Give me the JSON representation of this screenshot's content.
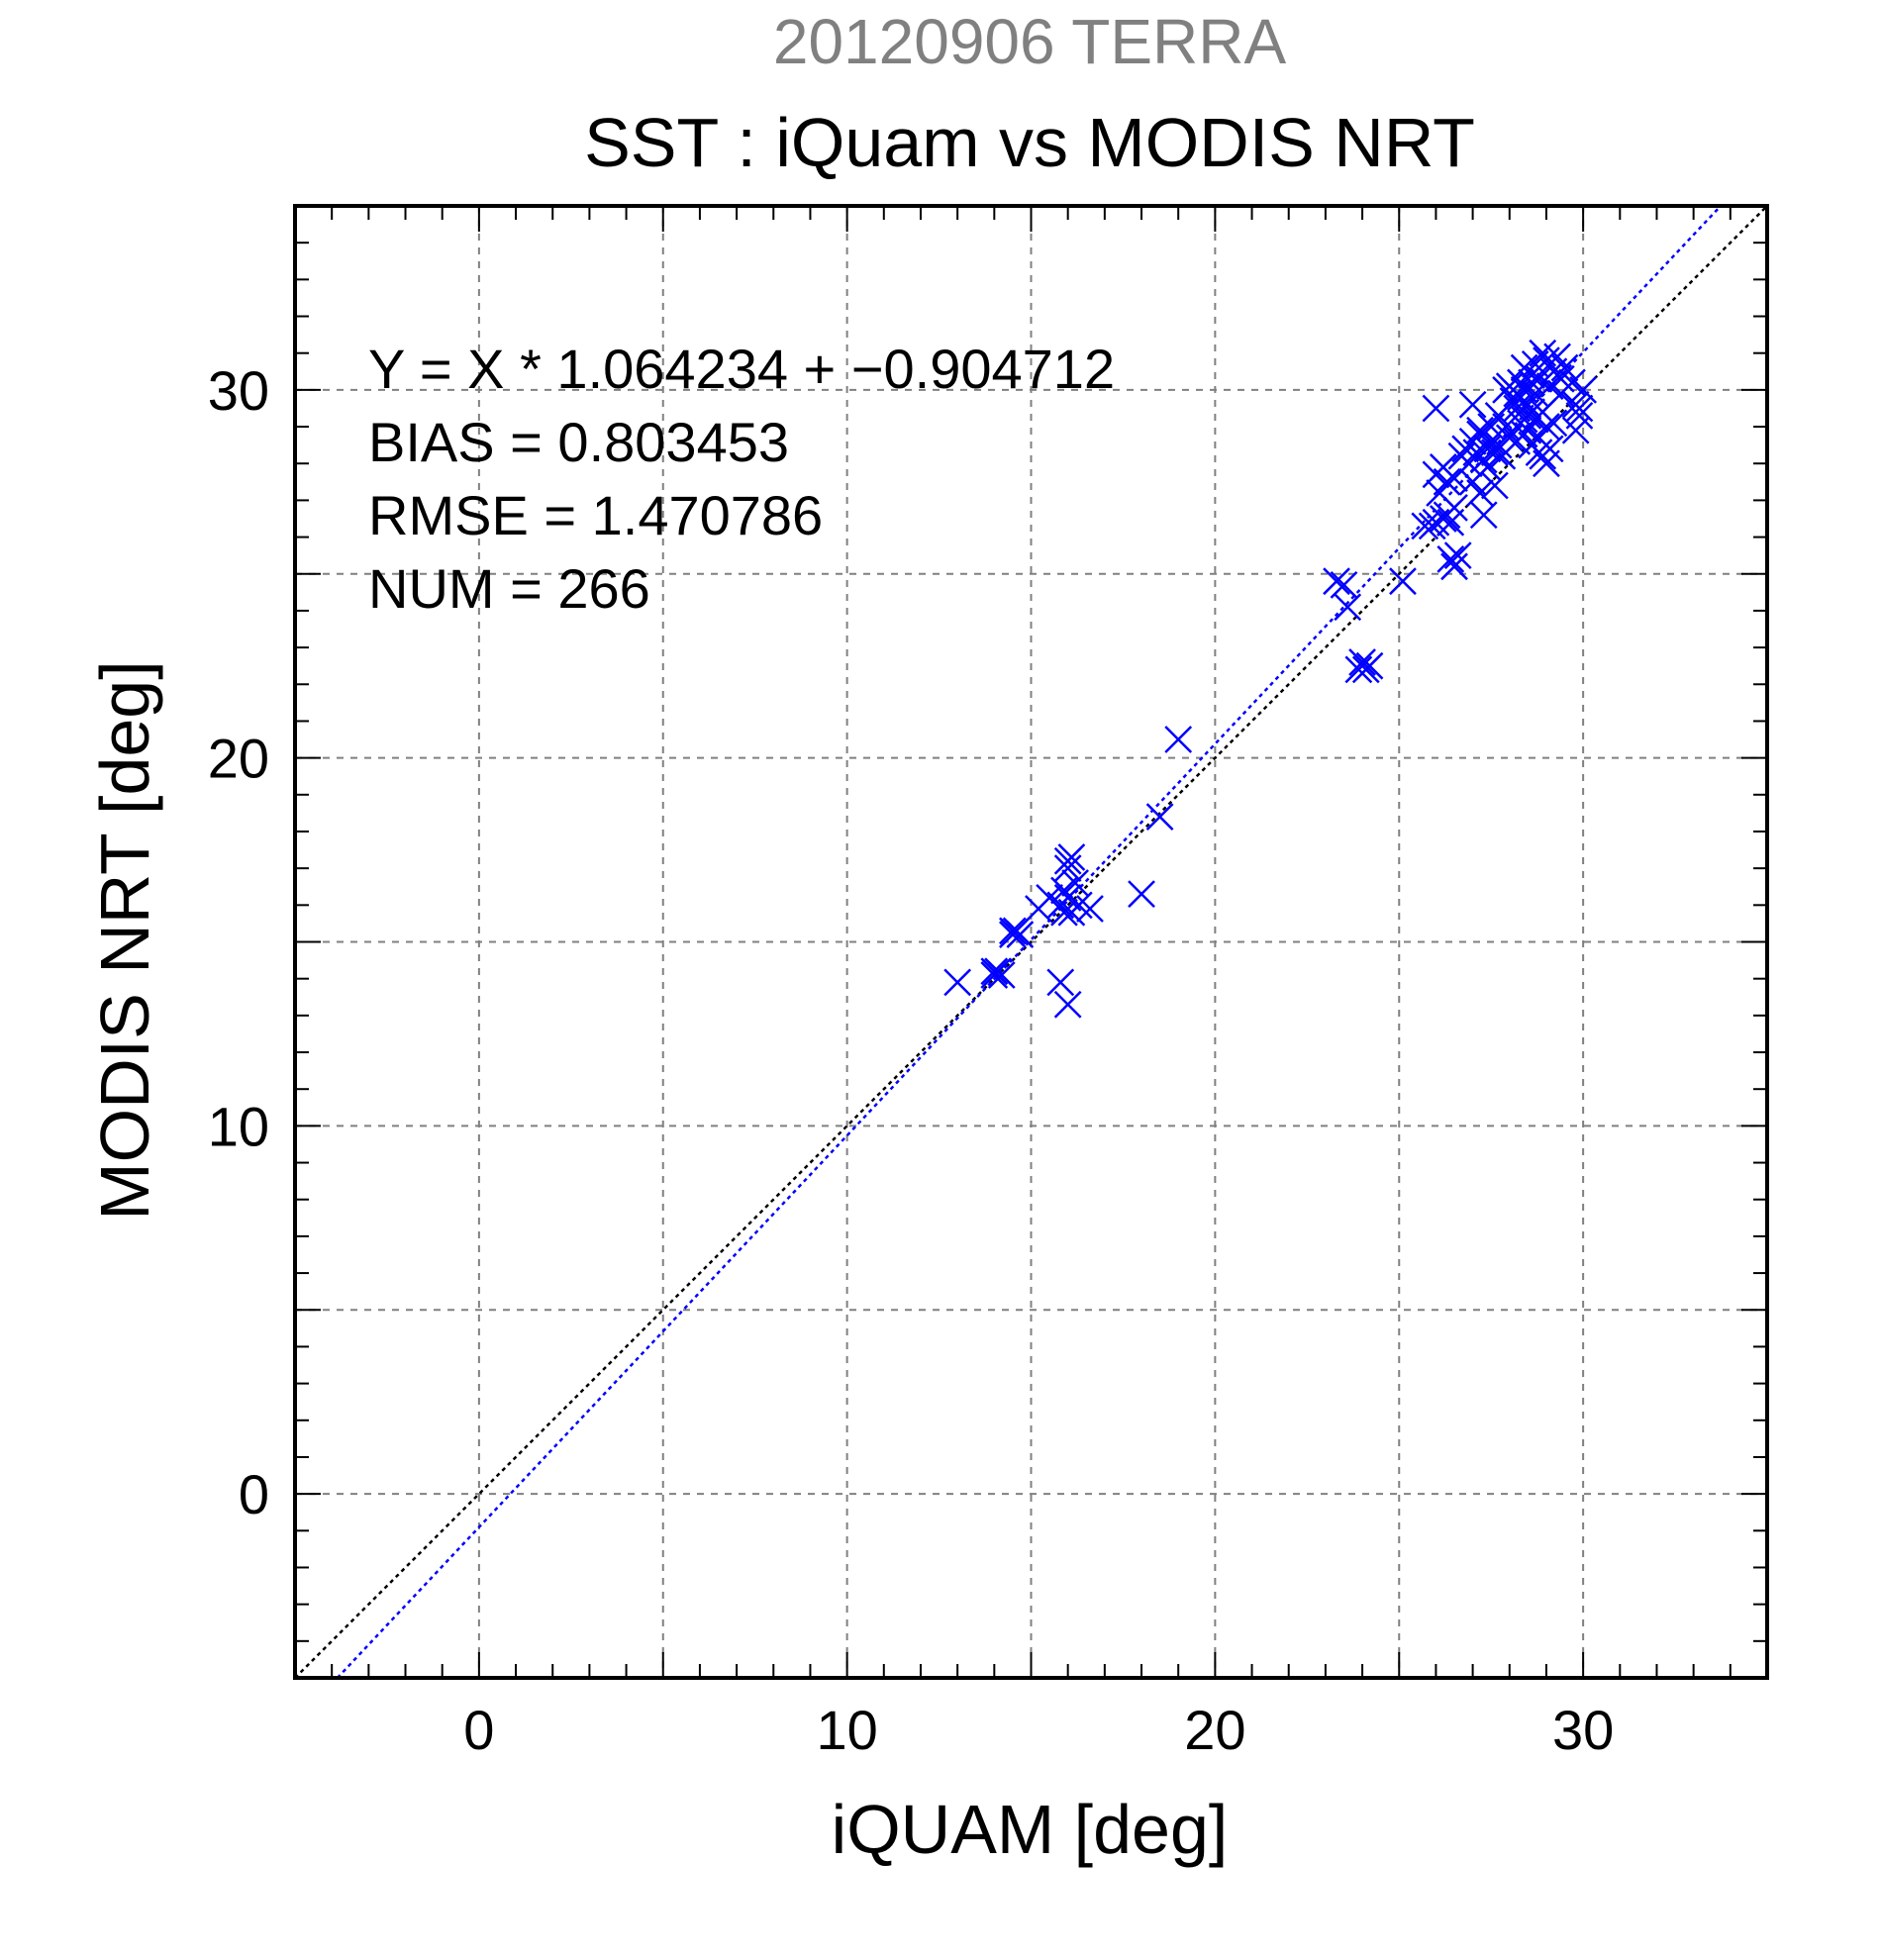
{
  "chart_data": {
    "type": "scatter",
    "supertitle": "20120906 TERRA",
    "title": "SST : iQuam vs MODIS NRT",
    "xlabel": "iQUAM [deg]",
    "ylabel": "MODIS NRT [deg]",
    "xlim": [
      -5,
      35
    ],
    "ylim": [
      -5,
      35
    ],
    "x_ticks": [
      0,
      10,
      20,
      30
    ],
    "y_ticks": [
      0,
      10,
      20,
      30
    ],
    "grid": true,
    "grid_step": 5,
    "minor_tick_step": 1,
    "colors": {
      "supertitle": "#808080",
      "text": "#000000",
      "points": "#0000ff",
      "fit_line": "#0000ff",
      "identity_line": "#000000",
      "grid": "#808080"
    },
    "stats": {
      "equation": "Y = X * 1.064234 + −0.904712",
      "bias": "BIAS = 0.803453",
      "rmse": "RMSE = 1.470786",
      "num": "NUM = 266"
    },
    "fit": {
      "slope": 1.064234,
      "intercept": -0.904712
    },
    "identity": {
      "slope": 1,
      "intercept": 0
    },
    "marker": "x",
    "points": [
      [
        13.0,
        13.9
      ],
      [
        14.0,
        14.1
      ],
      [
        14.1,
        14.2
      ],
      [
        14.2,
        14.1
      ],
      [
        14.0,
        14.2
      ],
      [
        14.5,
        15.2
      ],
      [
        14.6,
        15.3
      ],
      [
        14.7,
        15.2
      ],
      [
        14.5,
        15.3
      ],
      [
        15.2,
        15.9
      ],
      [
        15.5,
        16.2
      ],
      [
        15.8,
        16.0
      ],
      [
        15.9,
        16.4
      ],
      [
        16.0,
        17.0
      ],
      [
        16.0,
        17.2
      ],
      [
        16.1,
        17.3
      ],
      [
        16.0,
        16.2
      ],
      [
        16.1,
        15.8
      ],
      [
        16.3,
        16.0
      ],
      [
        16.6,
        15.9
      ],
      [
        16.2,
        16.6
      ],
      [
        15.9,
        15.8
      ],
      [
        15.8,
        13.9
      ],
      [
        16.0,
        13.3
      ],
      [
        18.0,
        16.3
      ],
      [
        18.5,
        18.4
      ],
      [
        19.0,
        20.5
      ],
      [
        23.3,
        24.8
      ],
      [
        23.5,
        24.7
      ],
      [
        23.6,
        24.1
      ],
      [
        23.9,
        22.4
      ],
      [
        24.0,
        22.6
      ],
      [
        24.2,
        22.5
      ],
      [
        24.1,
        22.4
      ],
      [
        25.1,
        24.8
      ],
      [
        25.7,
        26.3
      ],
      [
        25.9,
        26.3
      ],
      [
        26.0,
        26.4
      ],
      [
        26.2,
        26.5
      ],
      [
        26.3,
        26.6
      ],
      [
        26.4,
        26.4
      ],
      [
        26.5,
        26.8
      ],
      [
        26.1,
        27.2
      ],
      [
        26.3,
        27.5
      ],
      [
        26.0,
        27.7
      ],
      [
        26.2,
        27.9
      ],
      [
        26.5,
        27.6
      ],
      [
        26.4,
        25.4
      ],
      [
        26.5,
        25.2
      ],
      [
        26.6,
        25.5
      ],
      [
        26.0,
        29.5
      ],
      [
        26.7,
        28.2
      ],
      [
        26.9,
        28.0
      ],
      [
        26.8,
        28.4
      ],
      [
        27.0,
        28.6
      ],
      [
        27.1,
        28.3
      ],
      [
        27.2,
        28.8
      ],
      [
        27.3,
        28.1
      ],
      [
        27.4,
        28.4
      ],
      [
        27.5,
        28.6
      ],
      [
        27.6,
        28.3
      ],
      [
        27.7,
        28.5
      ],
      [
        27.0,
        27.5
      ],
      [
        27.2,
        27.2
      ],
      [
        27.4,
        27.9
      ],
      [
        27.6,
        27.4
      ],
      [
        27.3,
        26.6
      ],
      [
        27.0,
        29.6
      ],
      [
        27.2,
        28.9
      ],
      [
        27.5,
        29.0
      ],
      [
        27.7,
        29.3
      ],
      [
        27.9,
        29.0
      ],
      [
        27.8,
        28.2
      ],
      [
        28.0,
        28.7
      ],
      [
        28.0,
        30.1
      ],
      [
        28.2,
        29.5
      ],
      [
        28.3,
        29.8
      ],
      [
        28.4,
        30.0
      ],
      [
        28.5,
        29.6
      ],
      [
        28.6,
        30.2
      ],
      [
        28.7,
        29.9
      ],
      [
        28.8,
        30.3
      ],
      [
        28.4,
        30.6
      ],
      [
        28.6,
        30.4
      ],
      [
        28.9,
        29.4
      ],
      [
        28.3,
        29.1
      ],
      [
        28.5,
        28.9
      ],
      [
        28.7,
        29.2
      ],
      [
        28.2,
        28.6
      ],
      [
        28.4,
        28.8
      ],
      [
        28.6,
        28.5
      ],
      [
        28.8,
        28.7
      ],
      [
        29.0,
        29.0
      ],
      [
        29.1,
        30.1
      ],
      [
        29.2,
        30.5
      ],
      [
        29.0,
        30.8
      ],
      [
        28.9,
        31.0
      ],
      [
        29.3,
        30.9
      ],
      [
        29.4,
        30.3
      ],
      [
        29.5,
        30.6
      ],
      [
        29.7,
        30.2
      ],
      [
        29.8,
        29.6
      ],
      [
        29.9,
        29.3
      ],
      [
        30.0,
        30.0
      ],
      [
        29.8,
        28.9
      ],
      [
        29.9,
        29.5
      ],
      [
        29.1,
        28.4
      ],
      [
        28.9,
        28.2
      ],
      [
        29.0,
        28.0
      ],
      [
        28.8,
        28.3
      ],
      [
        28.5,
        29.3
      ],
      [
        28.3,
        30.2
      ],
      [
        28.1,
        29.7
      ],
      [
        27.9,
        30.0
      ],
      [
        28.7,
        30.7
      ],
      [
        28.6,
        29.4
      ],
      [
        28.4,
        29.2
      ],
      [
        28.2,
        29.9
      ],
      [
        29.2,
        29.1
      ],
      [
        29.4,
        29.9
      ]
    ]
  }
}
